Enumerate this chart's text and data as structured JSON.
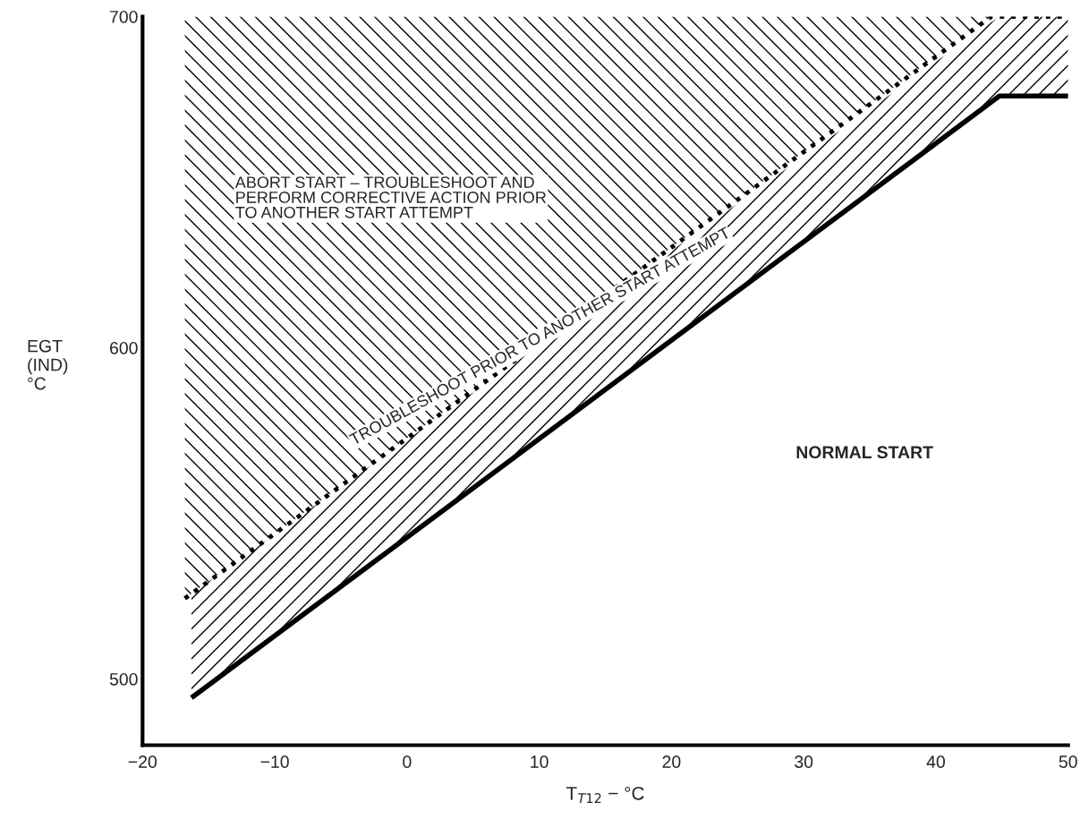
{
  "chart_data": {
    "type": "line",
    "xlabel": "T$_{T12}$ − °C",
    "ylabel": "EGT\n(IND)\n°C",
    "series": [
      {
        "x": [
          -16.3,
          44.8,
          50
        ],
        "values": [
          494.3,
          676,
          676
        ],
        "lower": [
          494.3,
          676,
          676
        ],
        "upper": [
          525.7,
          700,
          700
        ],
        "color": "#000000",
        "line_style": "solid"
      },
      {
        "x": [
          -16.8,
          44.2,
          50
        ],
        "values": [
          524.3,
          700,
          700
        ],
        "lower": [
          524.3,
          700,
          700
        ],
        "upper": [
          700,
          700,
          700
        ],
        "color": "#000000",
        "line_style": "dotted"
      }
    ],
    "annotations": [
      "ABORT START – TROUBLESHOOT AND\nPERFORM CORRECTIVE ACTION PRIOR\nTO ANOTHER START ATTEMPT",
      "TROUBLESHOOT PRIOR TO ANOTHER START ATTEMPT",
      "NORMAL START"
    ],
    "xlim": [
      -20,
      50
    ],
    "ylim": [
      480,
      700
    ],
    "xticks": [
      -20,
      -10,
      0,
      10,
      20,
      30,
      40,
      50
    ],
    "yticks": [
      500,
      600,
      700
    ],
    "grid": false,
    "legend": false,
    "marker": "none"
  }
}
